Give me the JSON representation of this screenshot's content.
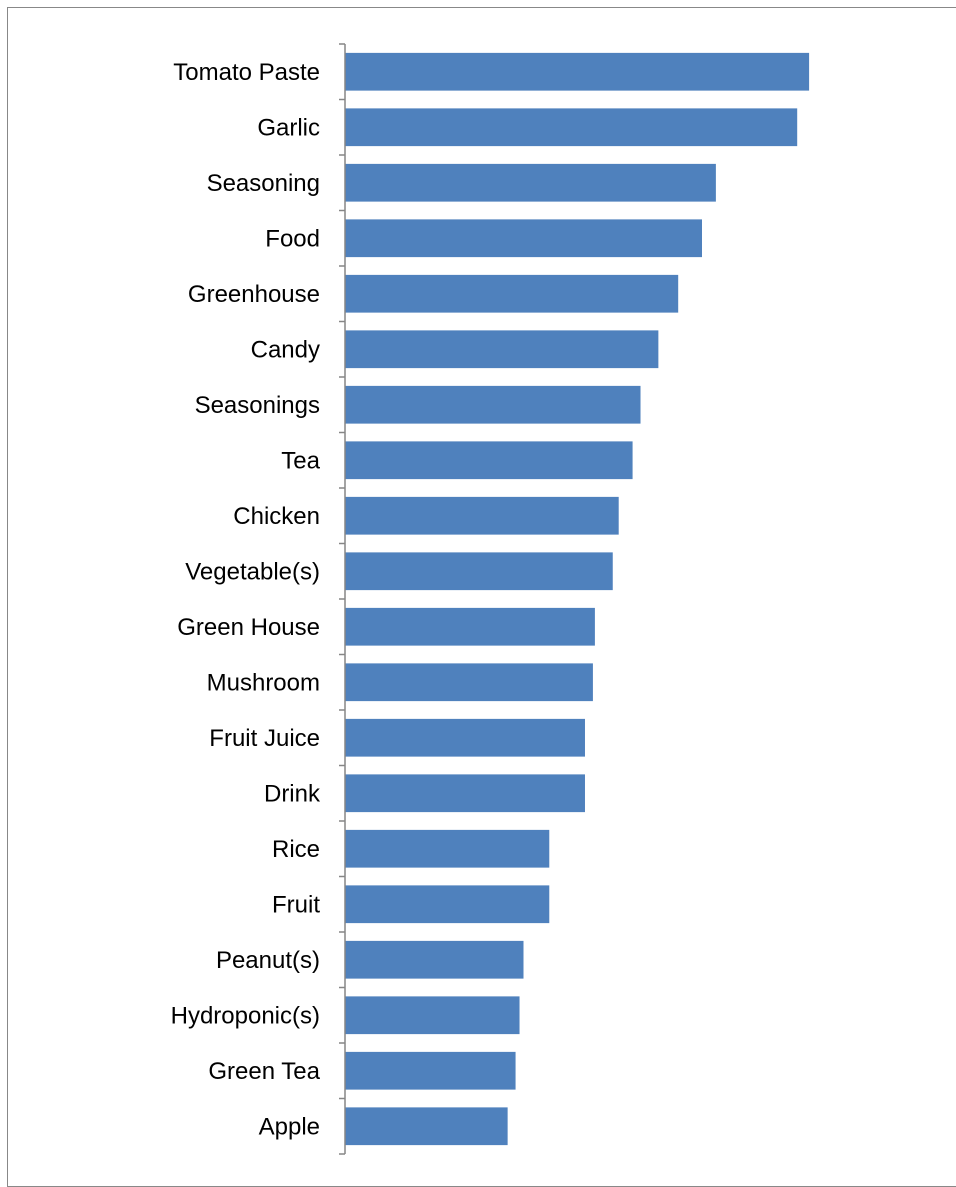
{
  "chart_data": {
    "type": "bar",
    "orientation": "horizontal",
    "title": "",
    "xlabel": "",
    "ylabel": "",
    "categories": [
      "Tomato Paste",
      "Garlic",
      "Seasoning",
      "Food",
      "Greenhouse",
      "Candy",
      "Seasonings",
      "Tea",
      "Chicken",
      "Vegetable(s)",
      "Green House",
      "Mushroom",
      "Fruit Juice",
      "Drink",
      "Rice",
      "Fruit",
      "Peanut(s)",
      "Hydroponic(s)",
      "Green Tea",
      "Apple"
    ],
    "values": [
      117,
      114,
      93.5,
      90,
      84,
      79,
      74.5,
      72.5,
      69,
      67.5,
      63,
      62.5,
      60.5,
      60.5,
      51.5,
      51.5,
      45,
      44,
      43,
      41
    ],
    "xlim": [
      0,
      150
    ],
    "grid": false,
    "legend": "none",
    "bar_color": "#4f81bd",
    "axis_color": "#868686"
  }
}
